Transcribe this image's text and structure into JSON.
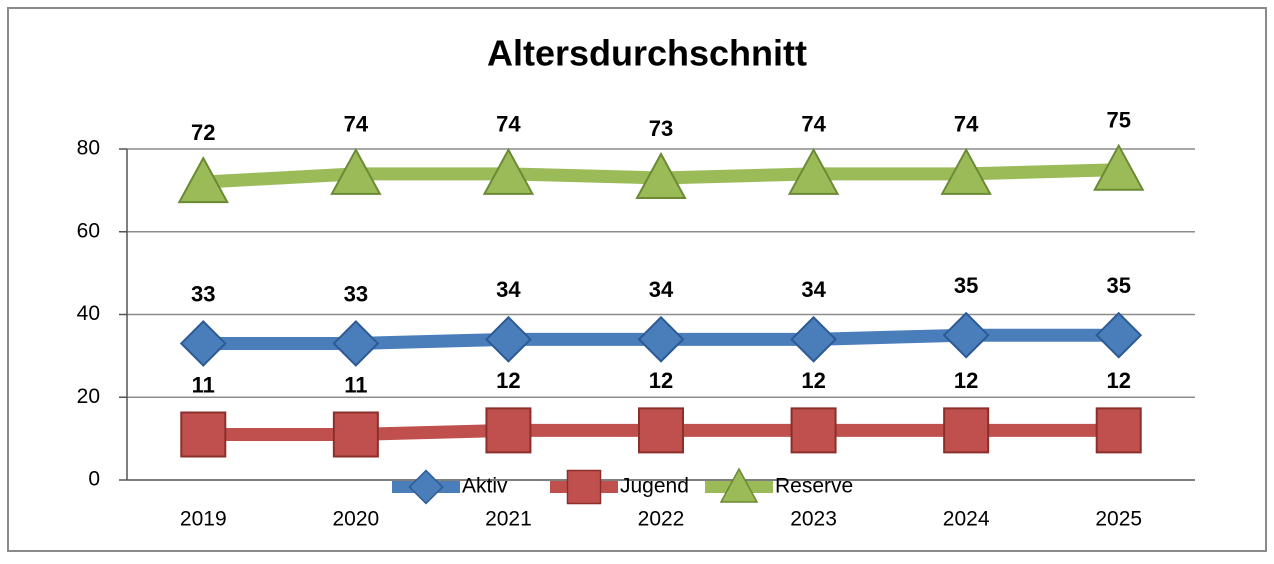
{
  "chart_data": {
    "type": "line",
    "title": "Altersdurchschnitt",
    "categories": [
      "2019",
      "2020",
      "2021",
      "2022",
      "2023",
      "2024",
      "2025"
    ],
    "series": [
      {
        "name": "Aktiv",
        "color": "#4a7ebb",
        "marker": "diamond",
        "values": [
          33,
          33,
          34,
          34,
          34,
          35,
          35
        ]
      },
      {
        "name": "Jugend",
        "color": "#c0504d",
        "marker": "square",
        "values": [
          11,
          11,
          12,
          12,
          12,
          12,
          12
        ]
      },
      {
        "name": "Reserve",
        "color": "#9bbb59",
        "marker": "triangle",
        "values": [
          72,
          74,
          74,
          73,
          74,
          74,
          75
        ]
      }
    ],
    "ylim": [
      0,
      80
    ],
    "yticks": [
      0,
      20,
      40,
      60,
      80
    ],
    "grid": true,
    "legend": "bottom"
  }
}
